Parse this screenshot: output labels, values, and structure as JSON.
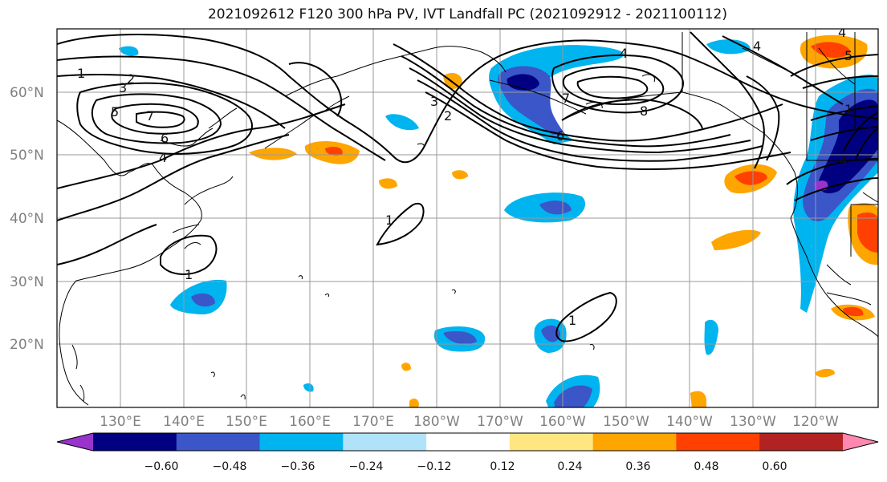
{
  "title": "2021092612 F120 300 hPa PV, IVT Landfall PC (2021092912 - 2021100112)",
  "lat_labels": [
    "60°N",
    "50°N",
    "40°N",
    "30°N",
    "20°N"
  ],
  "lon_labels": [
    "130°E",
    "140°E",
    "150°E",
    "160°E",
    "170°E",
    "180°W",
    "170°W",
    "160°W",
    "150°W",
    "140°W",
    "130°W",
    "120°W"
  ],
  "colorbar": {
    "ticks": [
      "−0.60",
      "−0.48",
      "−0.36",
      "−0.24",
      "−0.12",
      "0.12",
      "0.24",
      "0.36",
      "0.48",
      "0.60"
    ],
    "colors": [
      "#9933cc",
      "#000080",
      "#3a56c8",
      "#00b4f0",
      "#b0e2fa",
      "#ffffff",
      "#ffe680",
      "#ffa500",
      "#ff4000",
      "#b22222",
      "#ff88b0"
    ]
  },
  "contour_labels": [
    "1",
    "2",
    "3",
    "5",
    "7",
    "6",
    "4",
    "1",
    "1",
    "1",
    "4",
    "3",
    "2",
    "7",
    "6",
    "8",
    "4",
    "4",
    "5",
    "1",
    "4"
  ]
}
